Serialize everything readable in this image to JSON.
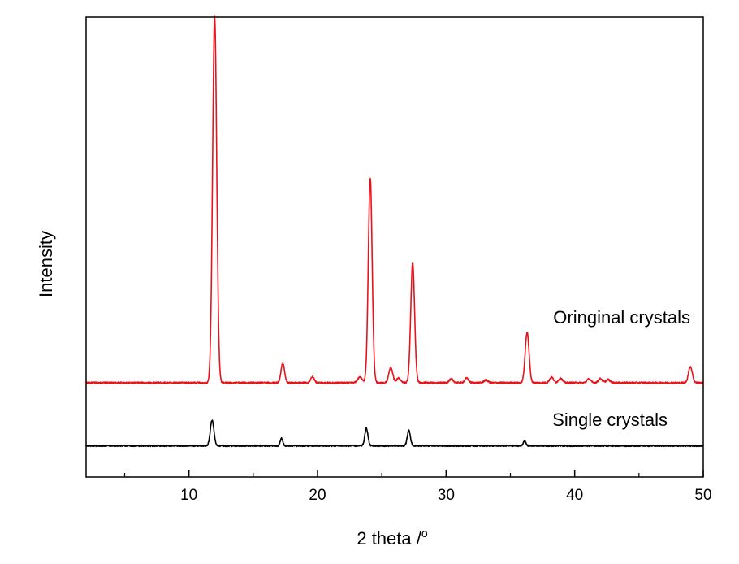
{
  "chart_data": {
    "type": "line",
    "xlabel": "2 theta /",
    "xlabel_superscript": "o",
    "ylabel": "Intensity",
    "xlim": [
      2,
      50
    ],
    "ylim": [
      0,
      100
    ],
    "x_ticks": [
      10,
      20,
      30,
      40,
      50
    ],
    "x_ticks_minor": [
      5,
      15,
      25,
      35,
      45
    ],
    "y_ticks_shown": false,
    "grid": false,
    "legend": "none",
    "annotations": [
      {
        "text": "Oringinal crystals",
        "series": "original"
      },
      {
        "text": "Single crystals",
        "series": "single"
      }
    ],
    "series": [
      {
        "key": "original",
        "color": "#e8141b",
        "baseline": 20.5,
        "noise": 0.35,
        "peaks": [
          {
            "x": 12.0,
            "height": 79.5,
            "width": 0.16
          },
          {
            "x": 17.3,
            "height": 4.2,
            "width": 0.14
          },
          {
            "x": 19.6,
            "height": 1.3,
            "width": 0.14
          },
          {
            "x": 23.3,
            "height": 1.2,
            "width": 0.18
          },
          {
            "x": 24.1,
            "height": 44.5,
            "width": 0.15
          },
          {
            "x": 25.7,
            "height": 3.3,
            "width": 0.15
          },
          {
            "x": 26.3,
            "height": 1.0,
            "width": 0.15
          },
          {
            "x": 27.4,
            "height": 26.0,
            "width": 0.15
          },
          {
            "x": 30.4,
            "height": 0.8,
            "width": 0.15
          },
          {
            "x": 31.6,
            "height": 1.0,
            "width": 0.15
          },
          {
            "x": 33.1,
            "height": 0.6,
            "width": 0.15
          },
          {
            "x": 36.3,
            "height": 11.0,
            "width": 0.15
          },
          {
            "x": 38.2,
            "height": 1.2,
            "width": 0.15
          },
          {
            "x": 38.9,
            "height": 1.0,
            "width": 0.15
          },
          {
            "x": 41.1,
            "height": 0.8,
            "width": 0.15
          },
          {
            "x": 42.0,
            "height": 0.9,
            "width": 0.15
          },
          {
            "x": 42.6,
            "height": 0.7,
            "width": 0.15
          },
          {
            "x": 49.0,
            "height": 3.5,
            "width": 0.15
          }
        ]
      },
      {
        "key": "single",
        "color": "#000000",
        "baseline": 6.8,
        "noise": 0.3,
        "peaks": [
          {
            "x": 11.8,
            "height": 5.6,
            "width": 0.14
          },
          {
            "x": 17.2,
            "height": 1.6,
            "width": 0.1
          },
          {
            "x": 23.8,
            "height": 3.8,
            "width": 0.12
          },
          {
            "x": 27.1,
            "height": 3.3,
            "width": 0.12
          },
          {
            "x": 36.1,
            "height": 1.1,
            "width": 0.1
          }
        ]
      }
    ]
  }
}
